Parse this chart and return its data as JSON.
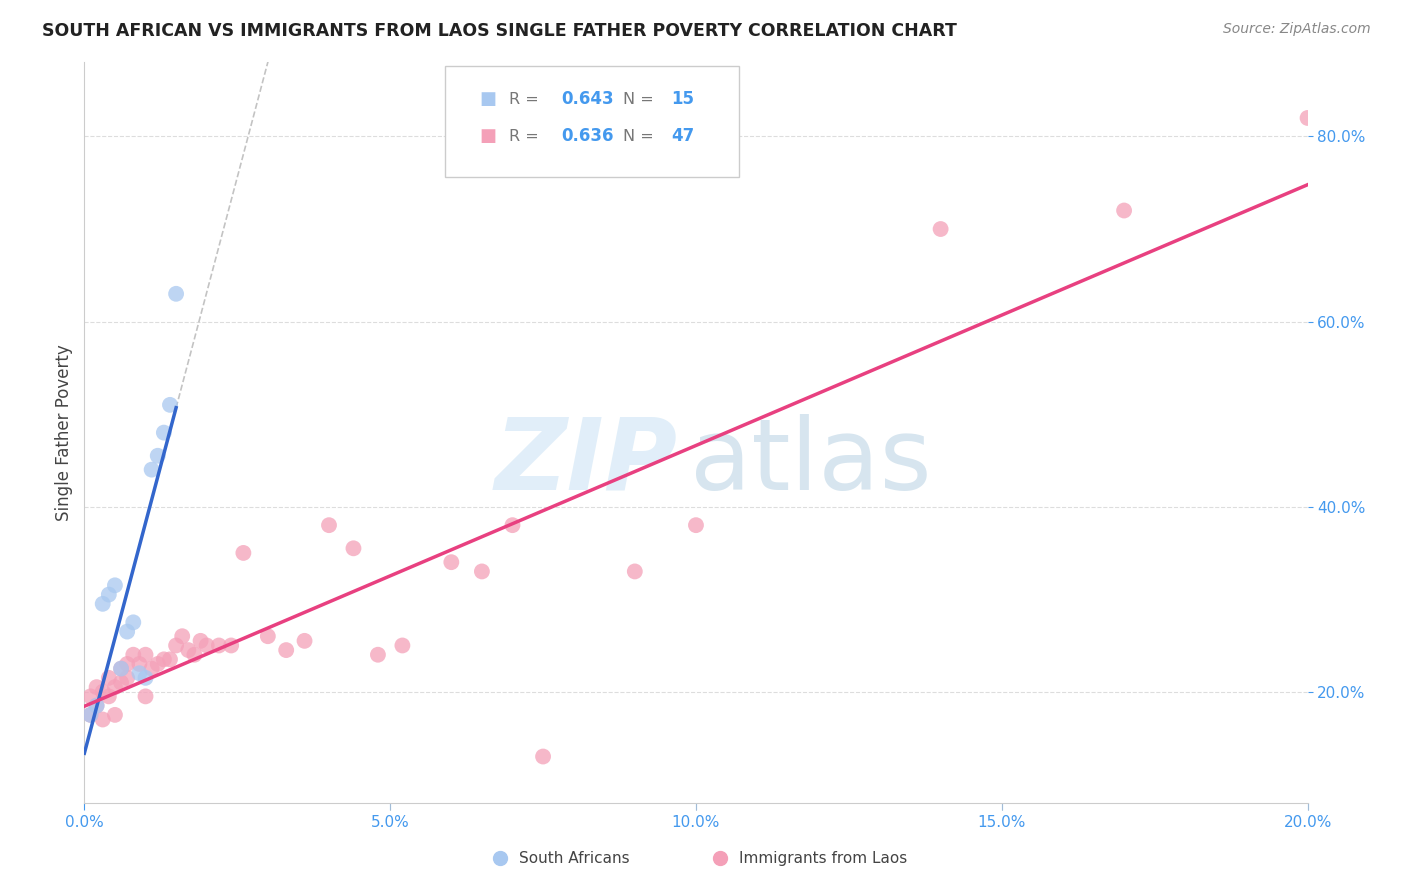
{
  "title": "SOUTH AFRICAN VS IMMIGRANTS FROM LAOS SINGLE FATHER POVERTY CORRELATION CHART",
  "source": "Source: ZipAtlas.com",
  "ylabel_label": "Single Father Poverty",
  "xlim": [
    0.0,
    0.2
  ],
  "ylim": [
    0.08,
    0.88
  ],
  "xticks": [
    0.0,
    0.05,
    0.1,
    0.15,
    0.2
  ],
  "yticks": [
    0.2,
    0.4,
    0.6,
    0.8
  ],
  "blue_color": "#a8c8f0",
  "pink_color": "#f4a0b8",
  "blue_line_color": "#3366cc",
  "pink_line_color": "#e84080",
  "dashed_line_color": "#aaaaaa",
  "grid_color": "#dddddd",
  "legend_R_blue": "0.643",
  "legend_N_blue": "15",
  "legend_R_pink": "0.636",
  "legend_N_pink": "47",
  "sa_x": [
    0.001,
    0.002,
    0.003,
    0.004,
    0.005,
    0.006,
    0.007,
    0.008,
    0.009,
    0.01,
    0.011,
    0.012,
    0.013,
    0.014,
    0.015
  ],
  "sa_y": [
    0.175,
    0.185,
    0.295,
    0.305,
    0.315,
    0.225,
    0.265,
    0.275,
    0.22,
    0.215,
    0.44,
    0.455,
    0.48,
    0.51,
    0.63
  ],
  "laos_x": [
    0.001,
    0.001,
    0.002,
    0.002,
    0.003,
    0.003,
    0.004,
    0.004,
    0.005,
    0.005,
    0.006,
    0.006,
    0.007,
    0.007,
    0.008,
    0.009,
    0.01,
    0.01,
    0.011,
    0.012,
    0.013,
    0.014,
    0.015,
    0.016,
    0.017,
    0.018,
    0.019,
    0.02,
    0.022,
    0.024,
    0.026,
    0.03,
    0.033,
    0.036,
    0.04,
    0.044,
    0.048,
    0.052,
    0.06,
    0.065,
    0.07,
    0.075,
    0.09,
    0.1,
    0.14,
    0.17,
    0.2
  ],
  "laos_y": [
    0.175,
    0.195,
    0.185,
    0.205,
    0.17,
    0.2,
    0.195,
    0.215,
    0.175,
    0.205,
    0.21,
    0.225,
    0.215,
    0.23,
    0.24,
    0.23,
    0.195,
    0.24,
    0.225,
    0.23,
    0.235,
    0.235,
    0.25,
    0.26,
    0.245,
    0.24,
    0.255,
    0.25,
    0.25,
    0.25,
    0.35,
    0.26,
    0.245,
    0.255,
    0.38,
    0.355,
    0.24,
    0.25,
    0.34,
    0.33,
    0.38,
    0.13,
    0.33,
    0.38,
    0.7,
    0.72,
    0.82
  ]
}
